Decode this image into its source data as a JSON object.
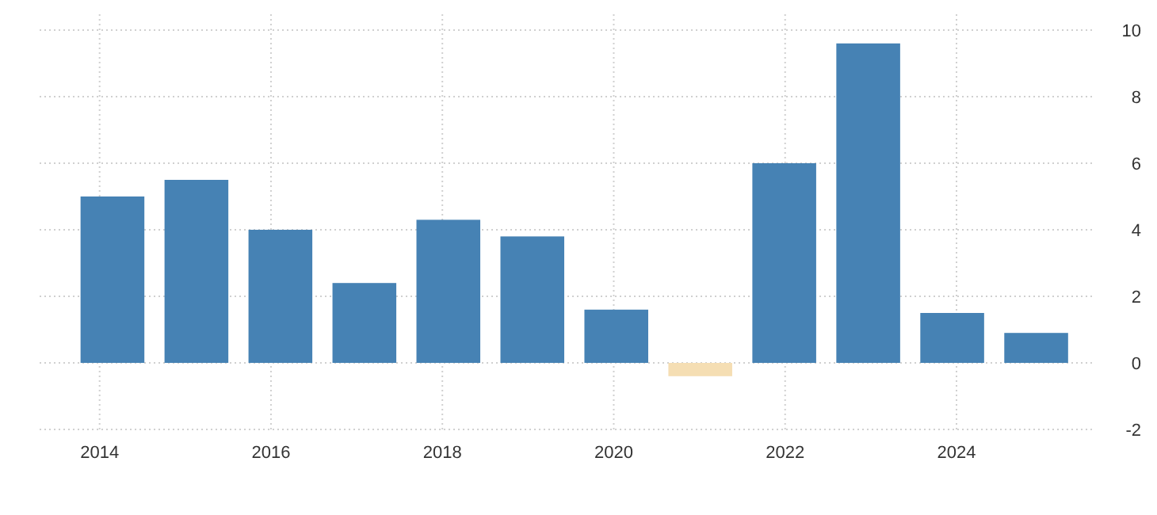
{
  "chart_data": {
    "type": "bar",
    "x": [
      2014.15,
      2015.13,
      2016.11,
      2017.09,
      2018.07,
      2019.05,
      2020.03,
      2021.01,
      2021.99,
      2022.97,
      2023.95,
      2024.93
    ],
    "values": [
      5.0,
      5.5,
      4.0,
      2.4,
      4.3,
      3.8,
      1.6,
      -0.4,
      6.0,
      9.6,
      1.5,
      0.9
    ],
    "colors": [
      "#4682b4",
      "#4682b4",
      "#4682b4",
      "#4682b4",
      "#4682b4",
      "#4682b4",
      "#4682b4",
      "#f5deb3",
      "#4682b4",
      "#4682b4",
      "#4682b4",
      "#4682b4"
    ],
    "xlim": [
      2013.3,
      2025.6
    ],
    "xticks": [
      2014,
      2016,
      2018,
      2020,
      2022,
      2024
    ],
    "ylim": [
      -2,
      10
    ],
    "yticks": [
      -2,
      0,
      2,
      4,
      6,
      8,
      10
    ],
    "grid": true
  }
}
